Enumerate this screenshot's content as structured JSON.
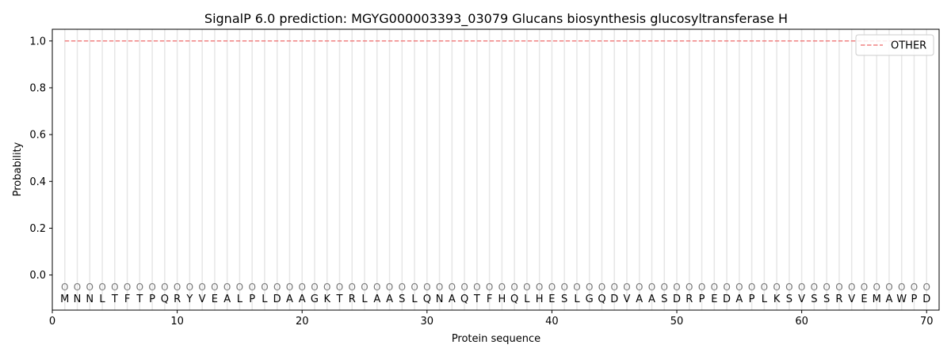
{
  "chart_data": {
    "type": "line",
    "title": "SignalP 6.0 prediction: MGYG000003393_03079 Glucans biosynthesis glucosyltransferase H",
    "xlabel": "Protein sequence",
    "ylabel": "Probability",
    "xlim": [
      0,
      71
    ],
    "ylim": [
      -0.15,
      1.05
    ],
    "xticks": [
      0,
      10,
      20,
      30,
      40,
      50,
      60,
      70
    ],
    "yticks": [
      0.0,
      0.2,
      0.4,
      0.6,
      0.8,
      1.0
    ],
    "grid": "vertical lines at each residue",
    "legend_position": "top-right",
    "sequence": "MNNLTFTPQRYVEALPLDAAGKTRLAASLQNAQTFHQLHESLGQDVAASDRPEDAPLKSVSSRVEMAWPD",
    "predicted_label_per_residue": "O",
    "series": [
      {
        "name": "OTHER",
        "color": "#f08080",
        "style": "dashed",
        "x_start": 1,
        "x_end": 70,
        "value": 1.0
      }
    ]
  }
}
